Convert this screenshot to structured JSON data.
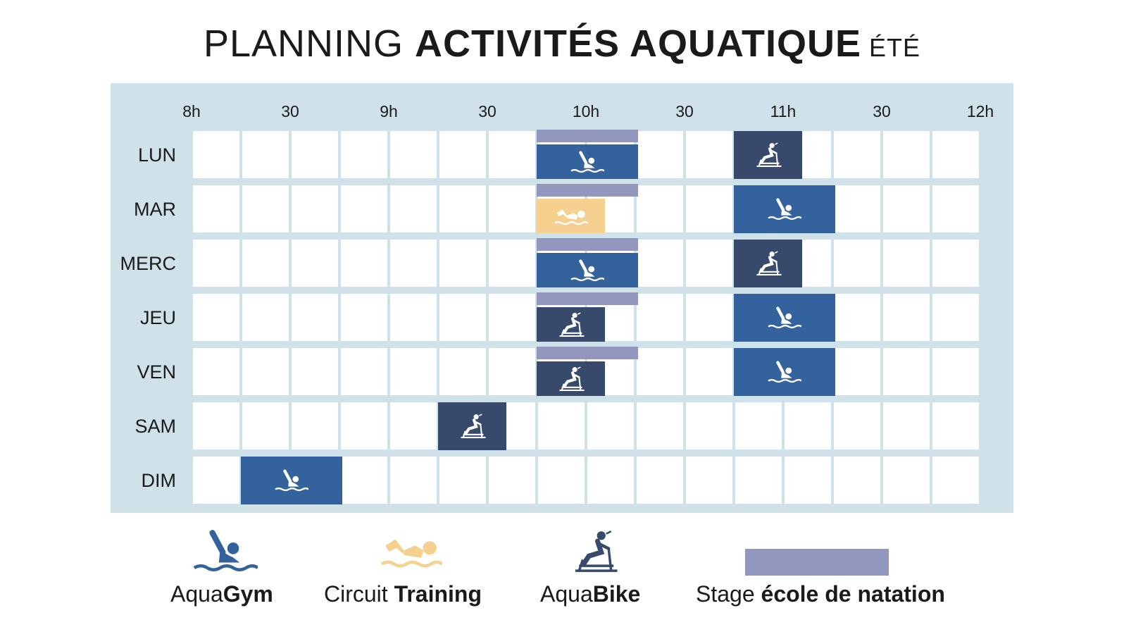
{
  "title": {
    "part1": "PLANNING ",
    "part2": "ACTIVITÉS AQUATIQUE",
    "part3": " ÉTÉ"
  },
  "hours": [
    "8h",
    "30",
    "9h",
    "30",
    "10h",
    "30",
    "11h",
    "30",
    "12h"
  ],
  "days": [
    "LUN",
    "MAR",
    "MERC",
    "JEU",
    "VEN",
    "SAM",
    "DIM"
  ],
  "colors": {
    "aquagym": "#33629d",
    "circuit": "#f5d08f",
    "aquabike": "#374a6b",
    "stage": "#9396bd",
    "panel": "#cfe2e9"
  },
  "schedule": [
    {
      "day": "LUN",
      "activities": [
        {
          "type": "stage",
          "start": "9h45",
          "end": "10h15"
        },
        {
          "type": "aquagym",
          "start": "9h45",
          "end": "10h15"
        },
        {
          "type": "aquabike",
          "start": "10h45",
          "end": "11h05"
        }
      ]
    },
    {
      "day": "MAR",
      "activities": [
        {
          "type": "stage",
          "start": "9h45",
          "end": "10h15"
        },
        {
          "type": "circuit",
          "start": "9h45",
          "end": "10h05"
        },
        {
          "type": "aquagym",
          "start": "10h45",
          "end": "11h15"
        }
      ]
    },
    {
      "day": "MERC",
      "activities": [
        {
          "type": "stage",
          "start": "9h45",
          "end": "10h15"
        },
        {
          "type": "aquagym",
          "start": "9h45",
          "end": "10h15"
        },
        {
          "type": "aquabike",
          "start": "10h45",
          "end": "11h05"
        }
      ]
    },
    {
      "day": "JEU",
      "activities": [
        {
          "type": "stage",
          "start": "9h45",
          "end": "10h15"
        },
        {
          "type": "aquabike",
          "start": "9h45",
          "end": "10h05"
        },
        {
          "type": "aquagym",
          "start": "10h45",
          "end": "11h15"
        }
      ]
    },
    {
      "day": "VEN",
      "activities": [
        {
          "type": "stage",
          "start": "9h45",
          "end": "10h15"
        },
        {
          "type": "aquabike",
          "start": "9h45",
          "end": "10h05"
        },
        {
          "type": "aquagym",
          "start": "10h45",
          "end": "11h15"
        }
      ]
    },
    {
      "day": "SAM",
      "activities": [
        {
          "type": "aquabike",
          "start": "9h15",
          "end": "9h35"
        }
      ]
    },
    {
      "day": "DIM",
      "activities": [
        {
          "type": "aquagym",
          "start": "8h15",
          "end": "8h45"
        }
      ]
    }
  ],
  "legend": [
    {
      "type": "aquagym",
      "label_light": "Aqua",
      "label_bold": "Gym"
    },
    {
      "type": "circuit",
      "label_light": "Circuit ",
      "label_bold": "Training"
    },
    {
      "type": "aquabike",
      "label_light": "Aqua",
      "label_bold": "Bike"
    },
    {
      "type": "stage",
      "label_light": "Stage ",
      "label_bold": "école de natation"
    }
  ],
  "icons": {
    "aquagym": "aquagym-swimmer-icon",
    "circuit": "circuit-training-icon",
    "aquabike": "aquabike-cyclist-icon"
  }
}
